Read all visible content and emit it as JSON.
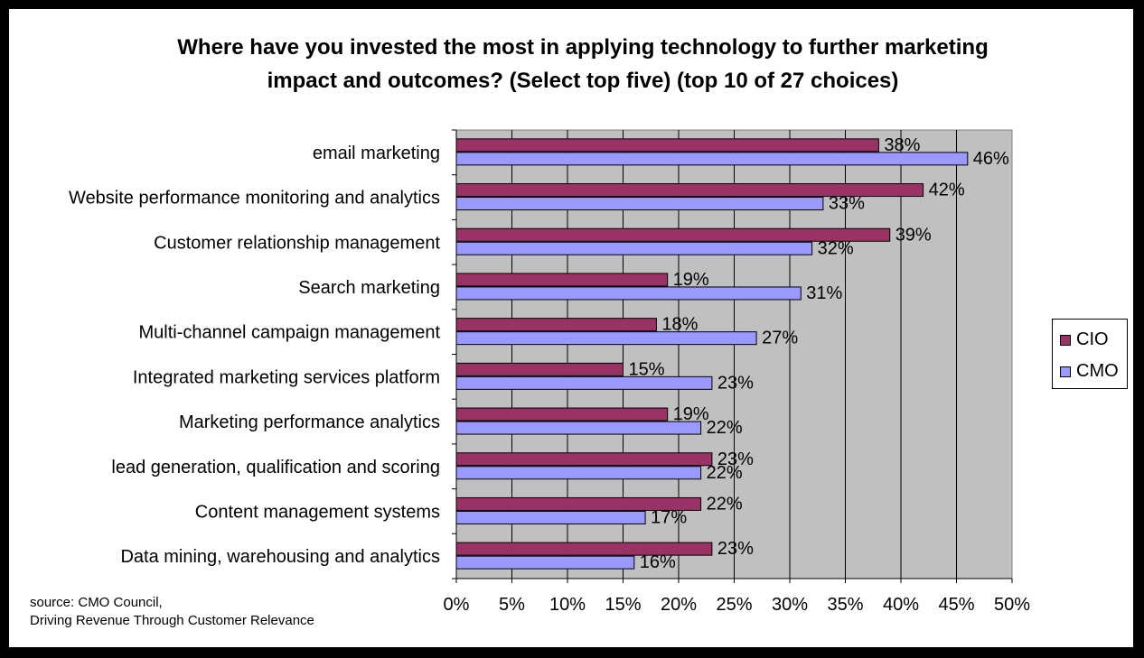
{
  "chart_data": {
    "type": "bar",
    "orientation": "horizontal",
    "title": "Where have you invested the most in applying technology to further marketing impact and outcomes? (Select top five) (top 10 of 27 choices)",
    "title_lines": [
      "Where have you invested the most in applying technology to further marketing",
      "impact and outcomes? (Select top five) (top 10 of 27 choices)"
    ],
    "categories": [
      "email marketing",
      "Website performance monitoring and analytics",
      "Customer relationship management",
      "Search marketing",
      "Multi-channel campaign management",
      "Integrated marketing services platform",
      "Marketing performance analytics",
      "lead generation, qualification and scoring",
      "Content management systems",
      "Data mining, warehousing and analytics"
    ],
    "series": [
      {
        "name": "CIO",
        "color": "#993366",
        "values": [
          38,
          42,
          39,
          19,
          18,
          15,
          19,
          23,
          22,
          23
        ]
      },
      {
        "name": "CMO",
        "color": "#9999FF",
        "values": [
          46,
          33,
          32,
          31,
          27,
          23,
          22,
          22,
          17,
          16
        ]
      }
    ],
    "xlim": [
      0,
      50
    ],
    "xticks": [
      0,
      5,
      10,
      15,
      20,
      25,
      30,
      35,
      40,
      45,
      50
    ],
    "tick_suffix": "%",
    "value_suffix": "%",
    "plot_background": "#C0C0C0",
    "grid": true,
    "legend_position": "right",
    "xlabel": "",
    "ylabel": ""
  },
  "source_lines": [
    "source: CMO Council,",
    "Driving Revenue Through Customer Relevance"
  ]
}
